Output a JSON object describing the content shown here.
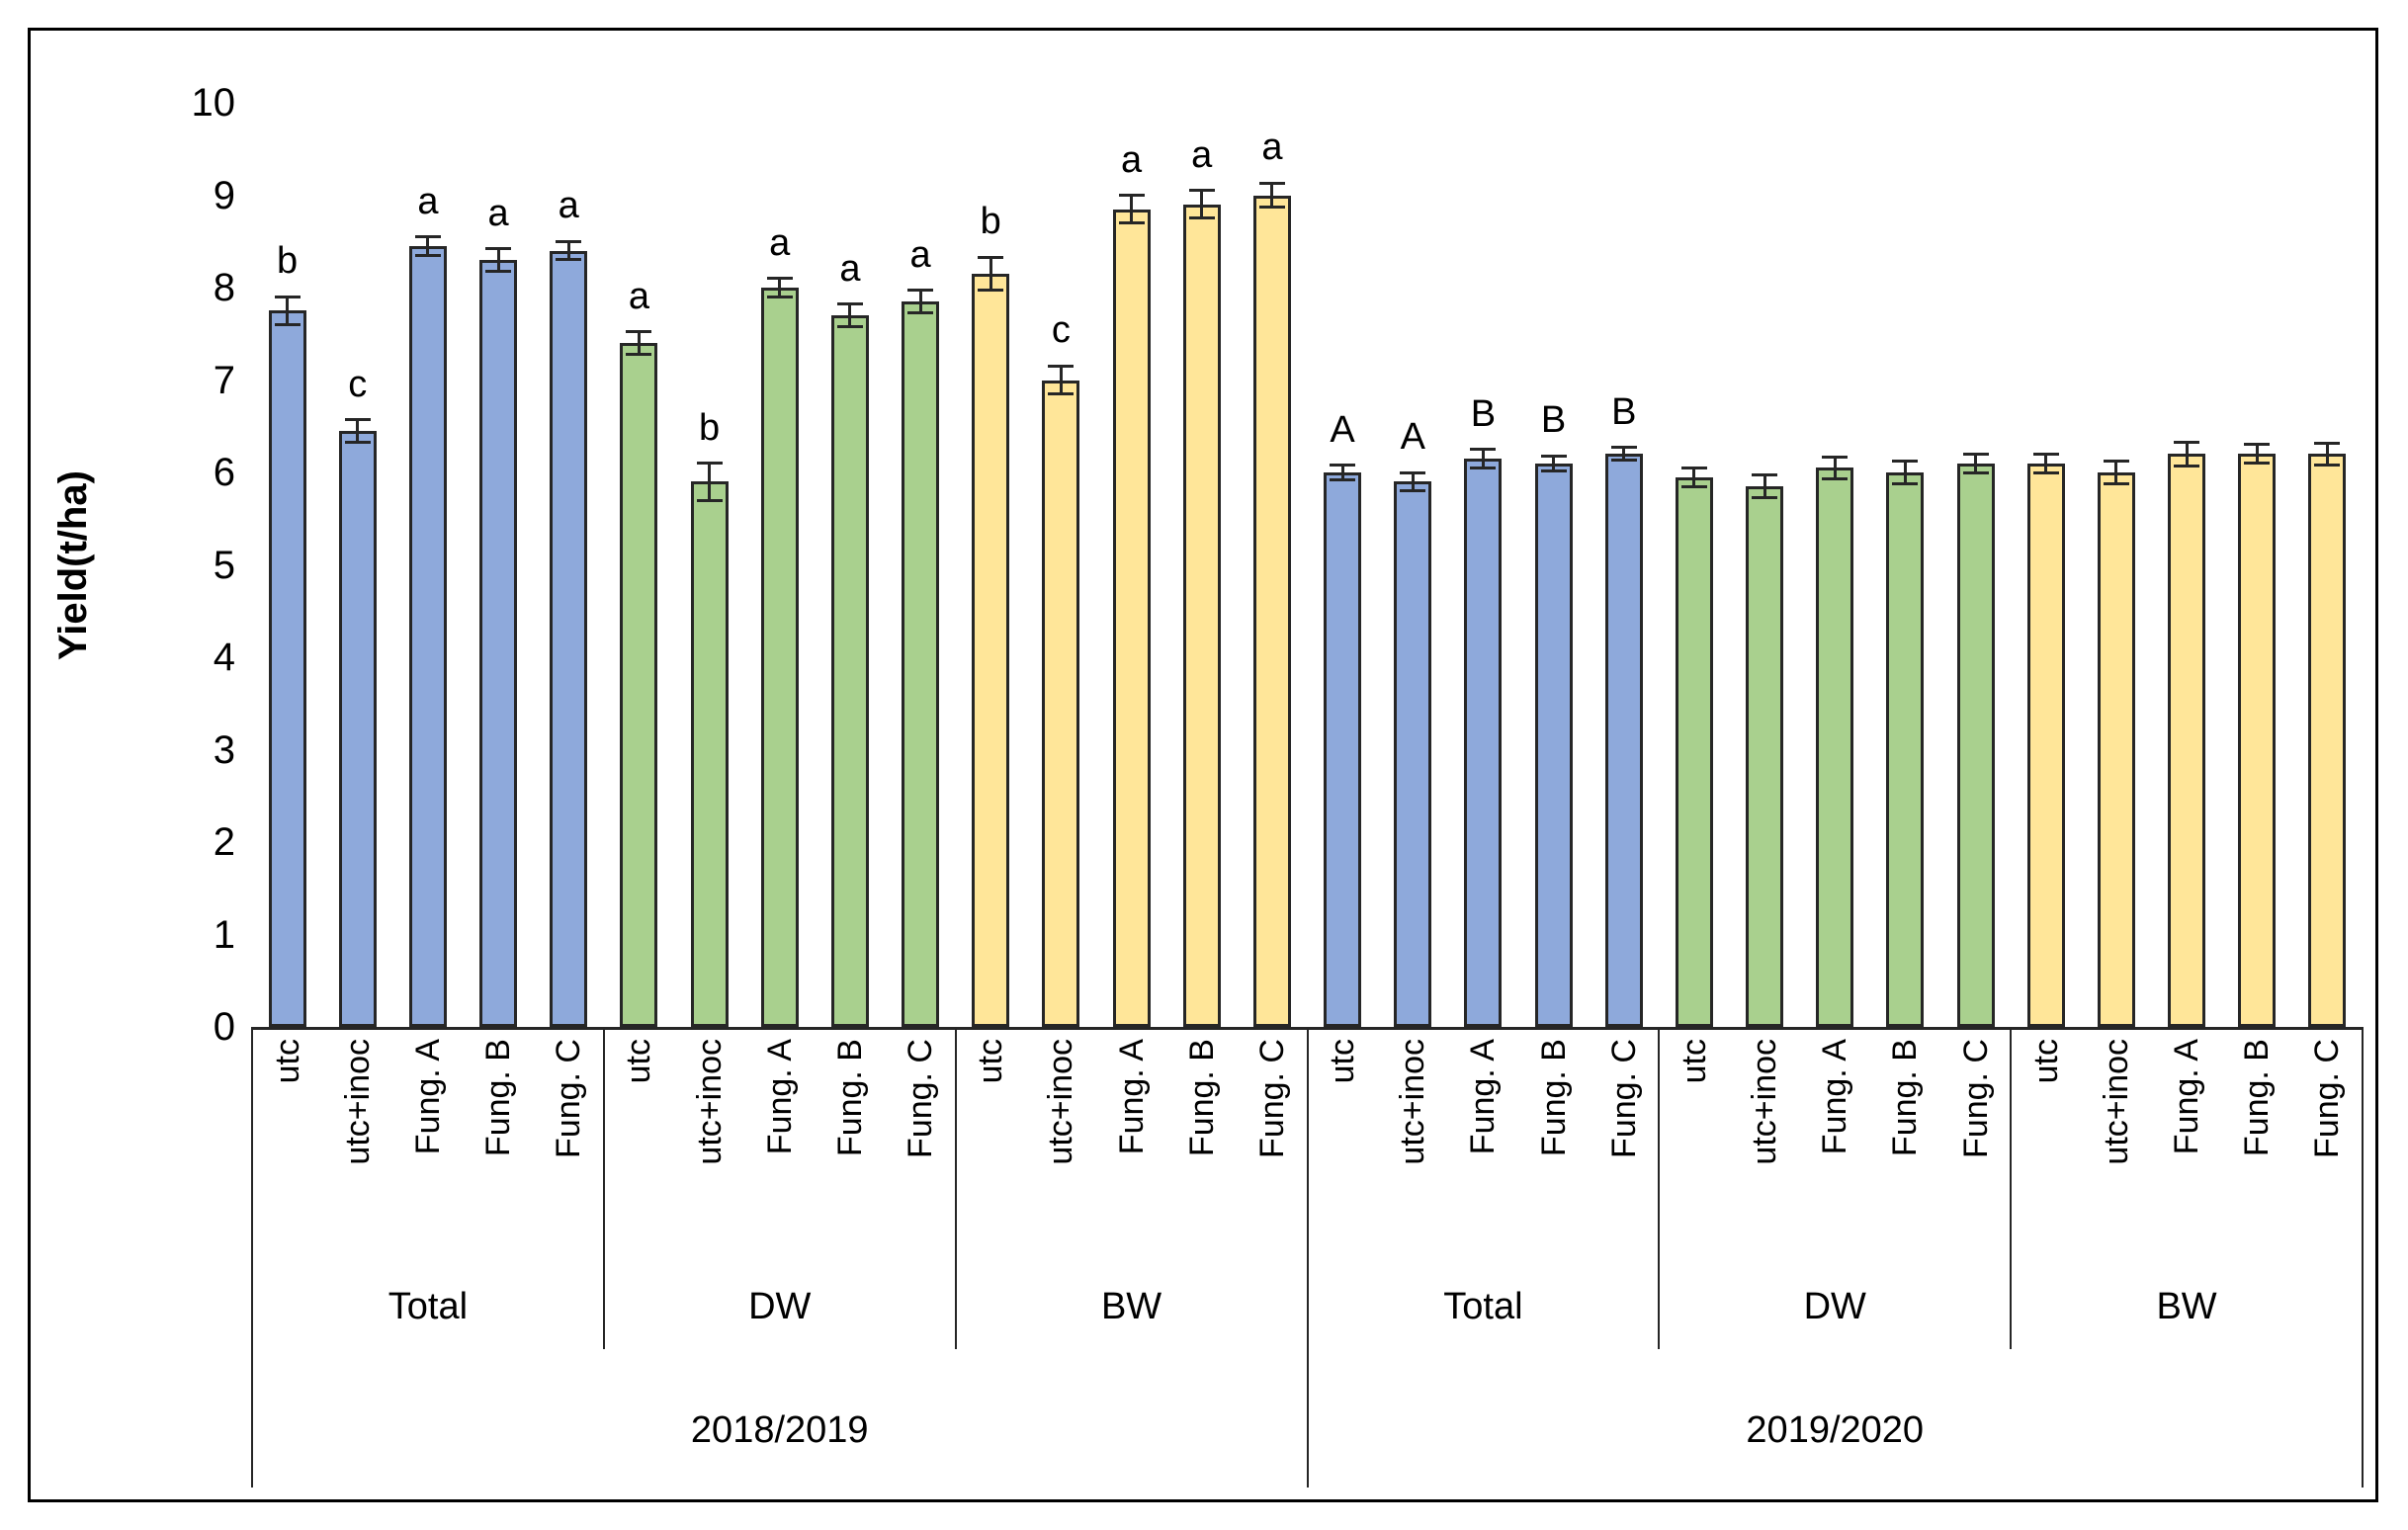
{
  "figure": {
    "background": "#ffffff",
    "border_color": "#000000"
  },
  "colors": {
    "total_blue": "#8EA9DB",
    "dw_green": "#A9D08E",
    "bw_yellow": "#FFE699",
    "bar_border": "#262626",
    "error_bar": "#262626",
    "text": "#000000"
  },
  "chart_data": {
    "type": "bar",
    "title": "",
    "xlabel": "",
    "ylabel": "Yield(t/ha)",
    "ylim": [
      0,
      10
    ],
    "yticks": [
      0,
      1,
      2,
      3,
      4,
      5,
      6,
      7,
      8,
      9,
      10
    ],
    "grid": false,
    "legend": "none",
    "error_bars": true,
    "treatments": [
      "utc",
      "utc+inoc",
      "Fung. A",
      "Fung. B",
      "Fung. C"
    ],
    "seasons": [
      {
        "label": "2018/2019",
        "groups": [
          {
            "label": "Total",
            "color": "#8EA9DB",
            "bars": [
              {
                "treatment": "utc",
                "value": 7.75,
                "error": 0.15,
                "letter": "b"
              },
              {
                "treatment": "utc+inoc",
                "value": 6.45,
                "error": 0.12,
                "letter": "c"
              },
              {
                "treatment": "Fung. A",
                "value": 8.45,
                "error": 0.1,
                "letter": "a"
              },
              {
                "treatment": "Fung. B",
                "value": 8.3,
                "error": 0.12,
                "letter": "a"
              },
              {
                "treatment": "Fung. C",
                "value": 8.4,
                "error": 0.1,
                "letter": "a"
              }
            ]
          },
          {
            "label": "DW",
            "color": "#A9D08E",
            "bars": [
              {
                "treatment": "utc",
                "value": 7.4,
                "error": 0.12,
                "letter": "a"
              },
              {
                "treatment": "utc+inoc",
                "value": 5.9,
                "error": 0.2,
                "letter": "b"
              },
              {
                "treatment": "Fung. A",
                "value": 8.0,
                "error": 0.1,
                "letter": "a"
              },
              {
                "treatment": "Fung. B",
                "value": 7.7,
                "error": 0.12,
                "letter": "a"
              },
              {
                "treatment": "Fung. C",
                "value": 7.85,
                "error": 0.12,
                "letter": "a"
              }
            ]
          },
          {
            "label": "BW",
            "color": "#FFE699",
            "bars": [
              {
                "treatment": "utc",
                "value": 8.15,
                "error": 0.18,
                "letter": "b"
              },
              {
                "treatment": "utc+inoc",
                "value": 7.0,
                "error": 0.15,
                "letter": "c"
              },
              {
                "treatment": "Fung. A",
                "value": 8.85,
                "error": 0.15,
                "letter": "a"
              },
              {
                "treatment": "Fung. B",
                "value": 8.9,
                "error": 0.15,
                "letter": "a"
              },
              {
                "treatment": "Fung. C",
                "value": 9.0,
                "error": 0.13,
                "letter": "a"
              }
            ]
          }
        ]
      },
      {
        "label": "2019/2020",
        "groups": [
          {
            "label": "Total",
            "color": "#8EA9DB",
            "bars": [
              {
                "treatment": "utc",
                "value": 6.0,
                "error": 0.08,
                "letter": "A"
              },
              {
                "treatment": "utc+inoc",
                "value": 5.9,
                "error": 0.1,
                "letter": "A"
              },
              {
                "treatment": "Fung. A",
                "value": 6.15,
                "error": 0.1,
                "letter": "B"
              },
              {
                "treatment": "Fung. B",
                "value": 6.1,
                "error": 0.08,
                "letter": "B"
              },
              {
                "treatment": "Fung. C",
                "value": 6.2,
                "error": 0.07,
                "letter": "B"
              }
            ]
          },
          {
            "label": "DW",
            "color": "#A9D08E",
            "bars": [
              {
                "treatment": "utc",
                "value": 5.95,
                "error": 0.1,
                "letter": ""
              },
              {
                "treatment": "utc+inoc",
                "value": 5.85,
                "error": 0.12,
                "letter": ""
              },
              {
                "treatment": "Fung. A",
                "value": 6.05,
                "error": 0.12,
                "letter": ""
              },
              {
                "treatment": "Fung. B",
                "value": 6.0,
                "error": 0.12,
                "letter": ""
              },
              {
                "treatment": "Fung. C",
                "value": 6.1,
                "error": 0.1,
                "letter": ""
              }
            ]
          },
          {
            "label": "BW",
            "color": "#FFE699",
            "bars": [
              {
                "treatment": "utc",
                "value": 6.1,
                "error": 0.1,
                "letter": ""
              },
              {
                "treatment": "utc+inoc",
                "value": 6.0,
                "error": 0.12,
                "letter": ""
              },
              {
                "treatment": "Fung. A",
                "value": 6.2,
                "error": 0.13,
                "letter": ""
              },
              {
                "treatment": "Fung. B",
                "value": 6.2,
                "error": 0.1,
                "letter": ""
              },
              {
                "treatment": "Fung. C",
                "value": 6.2,
                "error": 0.12,
                "letter": ""
              }
            ]
          }
        ]
      }
    ]
  }
}
